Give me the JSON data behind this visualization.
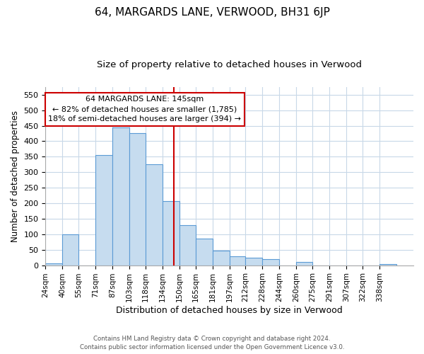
{
  "title": "64, MARGARDS LANE, VERWOOD, BH31 6JP",
  "subtitle": "Size of property relative to detached houses in Verwood",
  "xlabel": "Distribution of detached houses by size in Verwood",
  "ylabel": "Number of detached properties",
  "bar_color": "#c6dcef",
  "bar_edge_color": "#5b9bd5",
  "bin_labels": [
    "24sqm",
    "40sqm",
    "55sqm",
    "71sqm",
    "87sqm",
    "103sqm",
    "118sqm",
    "134sqm",
    "150sqm",
    "165sqm",
    "181sqm",
    "197sqm",
    "212sqm",
    "228sqm",
    "244sqm",
    "260sqm",
    "275sqm",
    "291sqm",
    "307sqm",
    "322sqm",
    "338sqm"
  ],
  "bin_edges": [
    24,
    40,
    55,
    71,
    87,
    103,
    118,
    134,
    150,
    165,
    181,
    197,
    212,
    228,
    244,
    260,
    275,
    291,
    307,
    322,
    338,
    354
  ],
  "bar_heights": [
    5,
    100,
    0,
    355,
    445,
    425,
    325,
    207,
    130,
    85,
    48,
    29,
    25,
    19,
    0,
    10,
    0,
    0,
    0,
    0,
    3
  ],
  "vline_x": 145,
  "vline_color": "#cc0000",
  "ylim": [
    0,
    575
  ],
  "annotation_text_line1": "64 MARGARDS LANE: 145sqm",
  "annotation_text_line2": "← 82% of detached houses are smaller (1,785)",
  "annotation_text_line3": "18% of semi-detached houses are larger (394) →",
  "footer_line1": "Contains HM Land Registry data © Crown copyright and database right 2024.",
  "footer_line2": "Contains public sector information licensed under the Open Government Licence v3.0.",
  "background_color": "#ffffff",
  "grid_color": "#c8d8e8",
  "title_fontsize": 11,
  "subtitle_fontsize": 9.5,
  "ylabel_fontsize": 8.5,
  "xlabel_fontsize": 9,
  "tick_fontsize": 7.5,
  "ytick_fontsize": 8,
  "annotation_fontsize": 8,
  "footer_fontsize": 6.2
}
